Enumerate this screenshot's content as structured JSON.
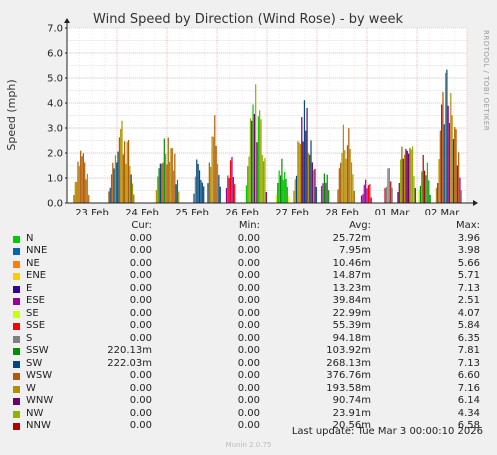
{
  "chart_data": {
    "type": "area",
    "title": "Wind Speed by Direction (Wind Rose) - by week",
    "ylabel": "Speed (mph)",
    "xlabel": "",
    "ylim": [
      0,
      7
    ],
    "yticks": [
      "0.0",
      "1.0",
      "2.0",
      "3.0",
      "4.0",
      "5.0",
      "6.0",
      "7.0"
    ],
    "xticks": [
      "23 Feb",
      "24 Feb",
      "25 Feb",
      "26 Feb",
      "27 Feb",
      "28 Feb",
      "01 Mar",
      "02 Mar"
    ],
    "grid": true,
    "series": [
      {
        "name": "N",
        "color": "#00cc00",
        "cur": "0.00",
        "min": "0.00",
        "avg": "25.72m",
        "max": "3.96"
      },
      {
        "name": "NNE",
        "color": "#0066b3",
        "cur": "0.00",
        "min": "0.00",
        "avg": "7.95m",
        "max": "3.98"
      },
      {
        "name": "NE",
        "color": "#ff8000",
        "cur": "0.00",
        "min": "0.00",
        "avg": "10.46m",
        "max": "5.66"
      },
      {
        "name": "ENE",
        "color": "#ffcc00",
        "cur": "0.00",
        "min": "0.00",
        "avg": "14.87m",
        "max": "5.71"
      },
      {
        "name": "E",
        "color": "#330099",
        "cur": "0.00",
        "min": "0.00",
        "avg": "13.23m",
        "max": "7.13"
      },
      {
        "name": "ESE",
        "color": "#990099",
        "cur": "0.00",
        "min": "0.00",
        "avg": "39.84m",
        "max": "2.51"
      },
      {
        "name": "SE",
        "color": "#ccff00",
        "cur": "0.00",
        "min": "0.00",
        "avg": "22.99m",
        "max": "4.07"
      },
      {
        "name": "SSE",
        "color": "#ff0000",
        "cur": "0.00",
        "min": "0.00",
        "avg": "55.39m",
        "max": "5.84"
      },
      {
        "name": "S",
        "color": "#808080",
        "cur": "0.00",
        "min": "0.00",
        "avg": "94.18m",
        "max": "6.35"
      },
      {
        "name": "SSW",
        "color": "#008f00",
        "cur": "220.13m",
        "min": "0.00",
        "avg": "103.92m",
        "max": "7.81"
      },
      {
        "name": "SW",
        "color": "#00487d",
        "cur": "222.03m",
        "min": "0.00",
        "avg": "268.13m",
        "max": "7.13"
      },
      {
        "name": "WSW",
        "color": "#b35a00",
        "cur": "0.00",
        "min": "0.00",
        "avg": "376.76m",
        "max": "6.60"
      },
      {
        "name": "W",
        "color": "#b38f00",
        "cur": "0.00",
        "min": "0.00",
        "avg": "193.58m",
        "max": "7.16"
      },
      {
        "name": "WNW",
        "color": "#6b006b",
        "cur": "0.00",
        "min": "0.00",
        "avg": "90.74m",
        "max": "6.14"
      },
      {
        "name": "NW",
        "color": "#8fb300",
        "cur": "0.00",
        "min": "0.00",
        "avg": "23.91m",
        "max": "4.34"
      },
      {
        "name": "NNW",
        "color": "#b30000",
        "cur": "0.00",
        "min": "0.00",
        "avg": "20.56m",
        "max": "6.58"
      }
    ],
    "bursts": [
      {
        "x": 0.1,
        "w": 0.35,
        "peak": 2.6,
        "series": [
          "WSW",
          "W"
        ]
      },
      {
        "x": 0.8,
        "w": 0.55,
        "peak": 3.8,
        "series": [
          "WSW",
          "W",
          "SW"
        ]
      },
      {
        "x": 1.75,
        "w": 0.5,
        "peak": 3.4,
        "series": [
          "SW",
          "WSW",
          "SSW",
          "W"
        ]
      },
      {
        "x": 2.5,
        "w": 0.25,
        "peak": 2.2,
        "series": [
          "SW",
          "S"
        ]
      },
      {
        "x": 2.78,
        "w": 0.3,
        "peak": 4.2,
        "series": [
          "SW",
          "WSW",
          "W"
        ]
      },
      {
        "x": 3.15,
        "w": 0.22,
        "peak": 2.1,
        "series": [
          "SSE",
          "ESE"
        ]
      },
      {
        "x": 3.55,
        "w": 0.45,
        "peak": 5.1,
        "series": [
          "W",
          "WNW",
          "NW",
          "N"
        ]
      },
      {
        "x": 4.15,
        "w": 0.3,
        "peak": 1.9,
        "series": [
          "N",
          "SSW",
          "SE"
        ]
      },
      {
        "x": 4.5,
        "w": 0.5,
        "peak": 4.4,
        "series": [
          "W",
          "WNW",
          "SW"
        ]
      },
      {
        "x": 5.05,
        "w": 0.2,
        "peak": 1.6,
        "series": [
          "ESE",
          "SSW"
        ]
      },
      {
        "x": 5.38,
        "w": 0.38,
        "peak": 3.7,
        "series": [
          "W",
          "WSW"
        ]
      },
      {
        "x": 5.85,
        "w": 0.25,
        "peak": 1.2,
        "series": [
          "ESE",
          "SSE"
        ]
      },
      {
        "x": 6.32,
        "w": 0.2,
        "peak": 1.8,
        "series": [
          "S",
          "NNW"
        ]
      },
      {
        "x": 6.58,
        "w": 0.4,
        "peak": 4.1,
        "series": [
          "W",
          "WNW",
          "NW",
          "WSW"
        ]
      },
      {
        "x": 7.0,
        "w": 0.28,
        "peak": 2.3,
        "series": [
          "N",
          "SSW",
          "NNW",
          "SE"
        ]
      },
      {
        "x": 7.35,
        "w": 0.55,
        "peak": 5.9,
        "series": [
          "WSW",
          "SW",
          "W",
          "ESE"
        ]
      }
    ]
  },
  "side_text": "RRDTOOL / TOBI OETIKER",
  "legend_headers": {
    "cur": "Cur:",
    "min": "Min:",
    "avg": "Avg:",
    "max": "Max:"
  },
  "last_update": "Last update: Tue Mar  3 00:00:10 2026",
  "version": "Munin 2.0.75"
}
